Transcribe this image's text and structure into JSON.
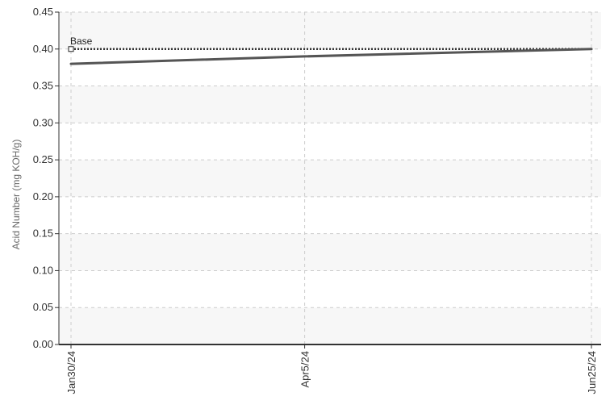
{
  "chart_data": {
    "type": "line",
    "title": "",
    "xlabel": "",
    "ylabel": "Acid Number (mg KOH/g)",
    "ylim": [
      0,
      0.45
    ],
    "yticks": [
      "0.00",
      "0.05",
      "0.10",
      "0.15",
      "0.20",
      "0.25",
      "0.30",
      "0.35",
      "0.40",
      "0.45"
    ],
    "x": [
      "Jan30/24",
      "Apr5/24",
      "Jun25/24"
    ],
    "x_days": [
      0,
      66,
      147
    ],
    "series": [
      {
        "values": [
          0.38,
          0.39,
          0.4
        ],
        "color": "#555555"
      }
    ],
    "reference_lines": [
      {
        "label": "Base",
        "value": 0.4,
        "style": "dotted",
        "color": "#333333"
      }
    ],
    "grid": true,
    "legend": "none"
  }
}
